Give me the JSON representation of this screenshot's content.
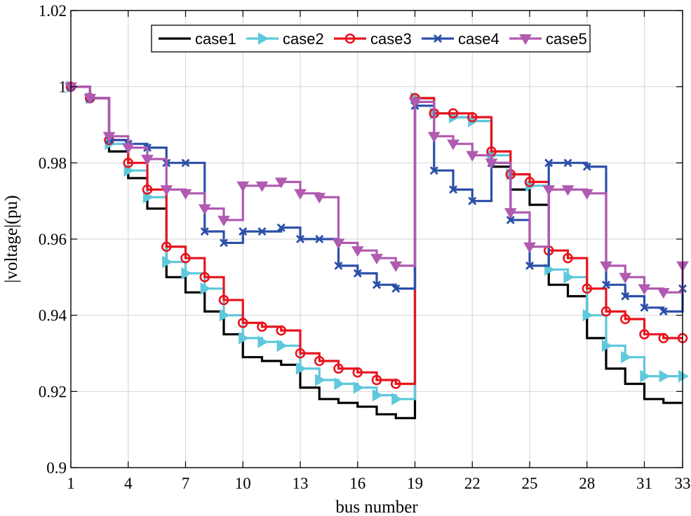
{
  "chart_data": {
    "type": "line",
    "step": true,
    "title": "",
    "xlabel": "bus number",
    "ylabel": "|voltage|(pu)",
    "xlim": [
      1,
      33
    ],
    "ylim": [
      0.9,
      1.02
    ],
    "xticks": [
      1,
      4,
      7,
      10,
      13,
      16,
      19,
      22,
      25,
      28,
      31,
      33
    ],
    "yticks": [
      0.9,
      0.92,
      0.94,
      0.96,
      0.98,
      1,
      1.02
    ],
    "ytick_labels": [
      "0.9",
      "0.92",
      "0.94",
      "0.96",
      "0.98",
      "1",
      "1.02"
    ],
    "grid": true,
    "legend_position": "top",
    "x": [
      1,
      2,
      3,
      4,
      5,
      6,
      7,
      8,
      9,
      10,
      11,
      12,
      13,
      14,
      15,
      16,
      17,
      18,
      19,
      20,
      21,
      22,
      23,
      24,
      25,
      26,
      27,
      28,
      29,
      30,
      31,
      32,
      33
    ],
    "series": [
      {
        "name": "case1",
        "color": "#000000",
        "marker": "none",
        "values": [
          1.0,
          0.997,
          0.983,
          0.976,
          0.968,
          0.95,
          0.946,
          0.941,
          0.935,
          0.929,
          0.928,
          0.927,
          0.921,
          0.918,
          0.917,
          0.916,
          0.914,
          0.913,
          0.997,
          0.993,
          0.992,
          0.991,
          0.979,
          0.973,
          0.969,
          0.948,
          0.945,
          0.934,
          0.926,
          0.922,
          0.918,
          0.917,
          0.917
        ]
      },
      {
        "name": "case2",
        "color": "#5ec8dc",
        "marker": "triangle-right",
        "values": [
          1.0,
          0.997,
          0.985,
          0.978,
          0.971,
          0.954,
          0.951,
          0.947,
          0.94,
          0.934,
          0.933,
          0.932,
          0.926,
          0.923,
          0.922,
          0.921,
          0.919,
          0.918,
          0.997,
          0.993,
          0.992,
          0.991,
          0.982,
          0.977,
          0.974,
          0.952,
          0.95,
          0.94,
          0.932,
          0.929,
          0.924,
          0.924,
          0.924
        ]
      },
      {
        "name": "case3",
        "color": "#e8141e",
        "marker": "circle",
        "values": [
          1.0,
          0.997,
          0.986,
          0.98,
          0.973,
          0.958,
          0.955,
          0.95,
          0.944,
          0.938,
          0.937,
          0.936,
          0.93,
          0.928,
          0.926,
          0.925,
          0.923,
          0.922,
          0.997,
          0.993,
          0.993,
          0.992,
          0.983,
          0.977,
          0.975,
          0.957,
          0.955,
          0.947,
          0.941,
          0.939,
          0.935,
          0.934,
          0.934
        ]
      },
      {
        "name": "case4",
        "color": "#2b4fa8",
        "marker": "x",
        "values": [
          1.0,
          0.997,
          0.986,
          0.985,
          0.984,
          0.98,
          0.98,
          0.962,
          0.959,
          0.962,
          0.962,
          0.963,
          0.96,
          0.96,
          0.953,
          0.951,
          0.948,
          0.947,
          0.995,
          0.978,
          0.973,
          0.97,
          0.98,
          0.965,
          0.953,
          0.98,
          0.98,
          0.979,
          0.948,
          0.945,
          0.942,
          0.941,
          0.947
        ]
      },
      {
        "name": "case5",
        "color": "#b05ab0",
        "marker": "triangle-down",
        "values": [
          1.0,
          0.997,
          0.987,
          0.984,
          0.981,
          0.973,
          0.972,
          0.968,
          0.965,
          0.974,
          0.974,
          0.975,
          0.972,
          0.971,
          0.959,
          0.957,
          0.955,
          0.953,
          0.996,
          0.987,
          0.985,
          0.982,
          0.98,
          0.967,
          0.958,
          0.973,
          0.973,
          0.972,
          0.953,
          0.95,
          0.947,
          0.946,
          0.953
        ]
      }
    ]
  }
}
